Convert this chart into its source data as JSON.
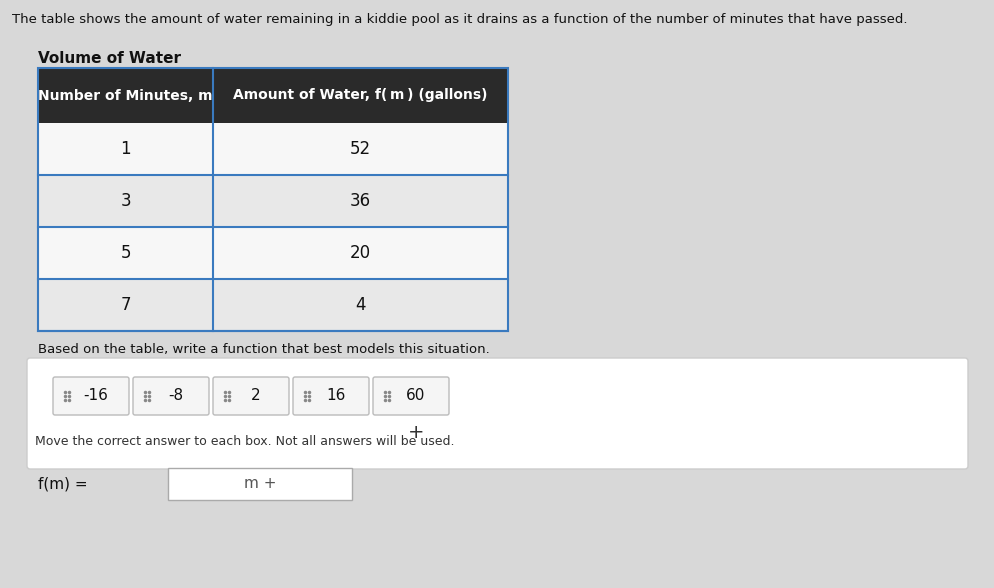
{
  "background_color": "#d8d8d8",
  "page_bg": "#f0f0f0",
  "header_text": "The table shows the amount of water remaining in a kiddie pool as it drains as a function of the number of minutes that have passed.",
  "table_title": "Volume of Water",
  "col1_header": "Number of Minutes, m",
  "col2_header": "Amount of Water, f( m ) (gallons)",
  "rows": [
    [
      1,
      52
    ],
    [
      3,
      36
    ],
    [
      5,
      20
    ],
    [
      7,
      4
    ]
  ],
  "below_table_text": "Based on the table, write a function that best models this situation.",
  "answer_chips": [
    "-16",
    "-8",
    "2",
    "16",
    "60"
  ],
  "plus_label": "+",
  "bottom_label_left": "f(m) =",
  "bottom_box_text": "m +",
  "table_header_bg": "#2e2e2e",
  "table_header_fg": "#ffffff",
  "table_row_bg1": "#f7f7f7",
  "table_row_bg2": "#e8e8e8",
  "table_border_color": "#3a7abf",
  "chip_bg": "#ffffff",
  "chip_border": "#aaaaaa",
  "answer_area_bg": "#ffffff",
  "answer_area_border": "#cccccc"
}
